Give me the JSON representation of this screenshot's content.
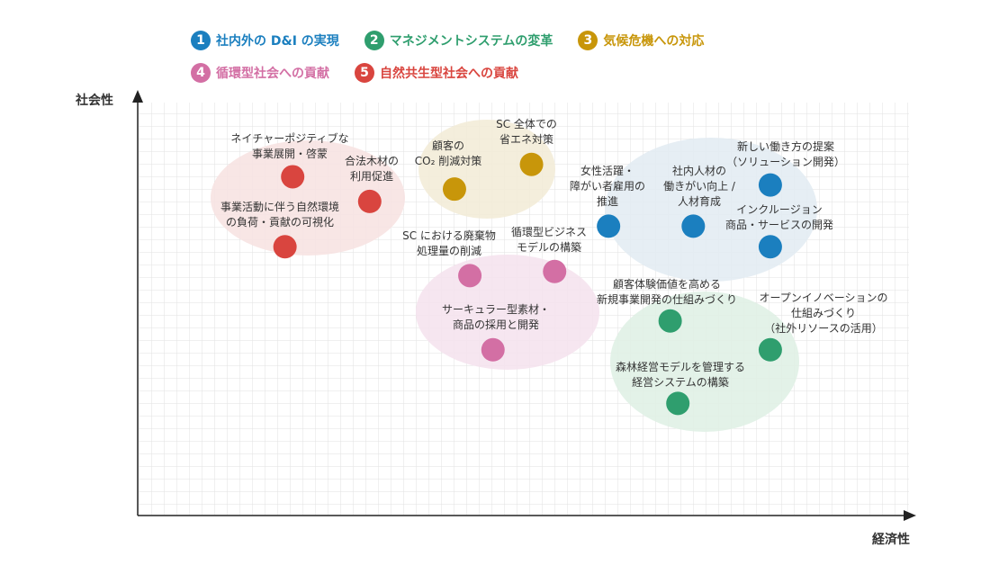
{
  "legend": [
    {
      "num": "1",
      "label": "社内外の D&I の実現",
      "color": "#1b7fbf"
    },
    {
      "num": "2",
      "label": "マネジメントシステムの変革",
      "color": "#2f9e6e"
    },
    {
      "num": "3",
      "label": "気候危機への対応",
      "color": "#c8960a"
    },
    {
      "num": "4",
      "label": "循環型社会への貢献",
      "color": "#d36fa4"
    },
    {
      "num": "5",
      "label": "自然共生型社会への貢献",
      "color": "#d9453f"
    }
  ],
  "chart_data": {
    "type": "scatter",
    "xlabel": "経済性",
    "ylabel": "社会性",
    "grid": true,
    "xlim": [
      0,
      100
    ],
    "ylim": [
      0,
      100
    ],
    "groups": [
      {
        "key": "1",
        "fill": "#e3ecf3"
      },
      {
        "key": "2",
        "fill": "#e0f1e6"
      },
      {
        "key": "3",
        "fill": "#f3ecd8"
      },
      {
        "key": "4",
        "fill": "#f5e3ee"
      },
      {
        "key": "5",
        "fill": "#f7e3e2"
      }
    ],
    "points": [
      {
        "group": "5",
        "x": 20,
        "y": 82,
        "label": [
          "ネイチャーポジティブな",
          "事業展開・啓蒙"
        ]
      },
      {
        "group": "5",
        "x": 30,
        "y": 76,
        "label": [
          "合法木材の",
          "利用促進"
        ]
      },
      {
        "group": "5",
        "x": 19,
        "y": 65,
        "label": [
          "事業活動に伴う自然環境",
          "の負荷・貢献の可視化"
        ]
      },
      {
        "group": "3",
        "x": 41,
        "y": 79,
        "label": [
          "顧客の",
          "CO₂ 削減対策"
        ]
      },
      {
        "group": "3",
        "x": 51,
        "y": 85,
        "label": [
          "SC 全体での",
          "省エネ対策"
        ]
      },
      {
        "group": "1",
        "x": 61,
        "y": 70,
        "label": [
          "女性活躍・",
          "障がい者雇用の",
          "推進"
        ]
      },
      {
        "group": "1",
        "x": 72,
        "y": 70,
        "label": [
          "社内人材の",
          "働きがい向上 /",
          "人材育成"
        ]
      },
      {
        "group": "1",
        "x": 82,
        "y": 80,
        "label": [
          "新しい働き方の提案",
          "（ソリューション開発）"
        ]
      },
      {
        "group": "1",
        "x": 82,
        "y": 65,
        "label": [
          "インクルージョン",
          "商品・サービスの開発"
        ]
      },
      {
        "group": "4",
        "x": 43,
        "y": 58,
        "label": [
          "SC における廃棄物",
          "処理量の削減"
        ]
      },
      {
        "group": "4",
        "x": 54,
        "y": 59,
        "label": [
          "循環型ビジネス",
          "モデルの構築"
        ]
      },
      {
        "group": "4",
        "x": 46,
        "y": 40,
        "label": [
          "サーキュラー型素材・",
          "商品の採用と開発"
        ]
      },
      {
        "group": "2",
        "x": 69,
        "y": 47,
        "label": [
          "顧客体験価値を高める",
          "新規事業開発の仕組みづくり"
        ]
      },
      {
        "group": "2",
        "x": 82,
        "y": 40,
        "label": [
          "オープンイノベーションの",
          "仕組みづくり",
          "（社外リソースの活用）"
        ]
      },
      {
        "group": "2",
        "x": 70,
        "y": 27,
        "label": [
          "森林経営モデルを管理する",
          "経営システムの構築"
        ]
      }
    ]
  }
}
